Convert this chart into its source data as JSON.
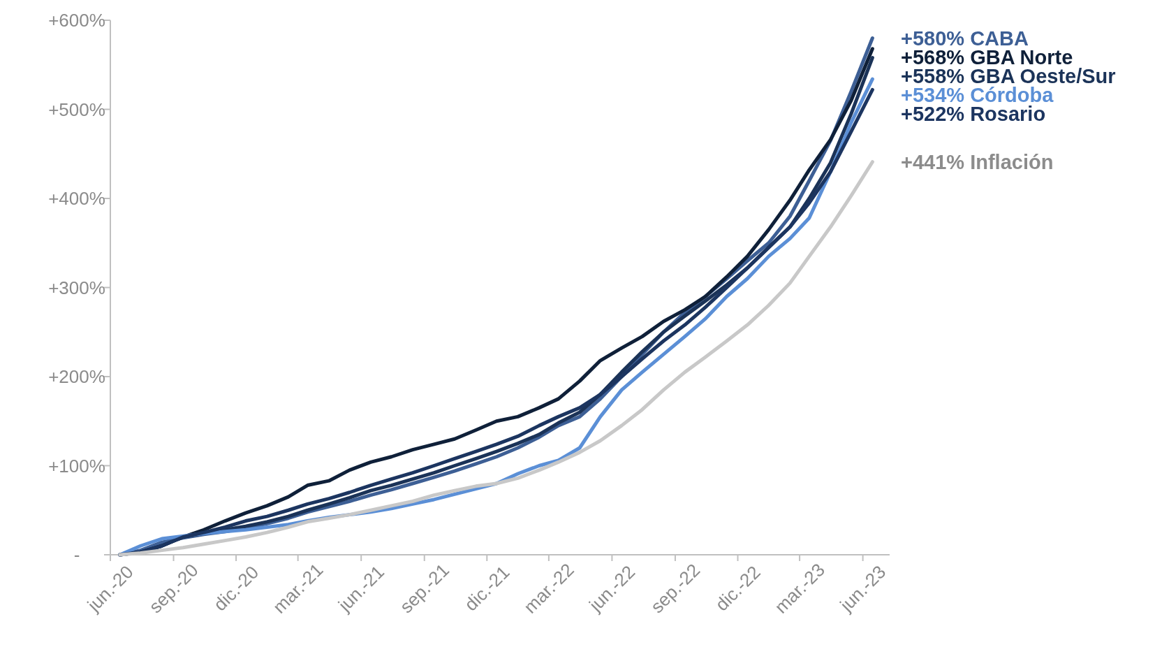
{
  "chart_data": {
    "type": "line",
    "x": [
      "2020-06-15",
      "2020-07-15",
      "2020-08-15",
      "2020-09-15",
      "2020-10-15",
      "2020-11-15",
      "2020-12-15",
      "2021-01-15",
      "2021-02-15",
      "2021-03-15",
      "2021-04-15",
      "2021-05-15",
      "2021-06-15",
      "2021-07-15",
      "2021-08-15",
      "2021-09-15",
      "2021-10-15",
      "2021-11-15",
      "2021-12-15",
      "2022-01-15",
      "2022-02-15",
      "2022-03-15",
      "2022-04-15",
      "2022-05-15",
      "2022-06-15",
      "2022-07-15",
      "2022-08-15",
      "2022-09-15",
      "2022-10-15",
      "2022-11-15",
      "2022-12-15",
      "2023-01-15",
      "2023-02-15",
      "2023-03-15",
      "2023-04-15",
      "2023-05-15",
      "2023-06-15"
    ],
    "xlim": [
      "2020-06-01",
      "2023-07-10"
    ],
    "xticks": [
      {
        "value": "2020-06-01",
        "label": "jun.-20"
      },
      {
        "value": "2020-09-01",
        "label": "sep.-20"
      },
      {
        "value": "2020-12-01",
        "label": "dic.-20"
      },
      {
        "value": "2021-03-01",
        "label": "mar.-21"
      },
      {
        "value": "2021-06-01",
        "label": "jun.-21"
      },
      {
        "value": "2021-09-01",
        "label": "sep.-21"
      },
      {
        "value": "2021-12-01",
        "label": "dic.-21"
      },
      {
        "value": "2022-03-01",
        "label": "mar.-22"
      },
      {
        "value": "2022-06-01",
        "label": "jun.-22"
      },
      {
        "value": "2022-09-01",
        "label": "sep.-22"
      },
      {
        "value": "2022-12-01",
        "label": "dic.-22"
      },
      {
        "value": "2023-03-01",
        "label": "mar.-23"
      },
      {
        "value": "2023-06-01",
        "label": "jun.-23"
      }
    ],
    "ylim": [
      0,
      600
    ],
    "yticks": [
      {
        "value": 0,
        "label": "-"
      },
      {
        "value": 100,
        "label": "+100%"
      },
      {
        "value": 200,
        "label": "+200%"
      },
      {
        "value": 300,
        "label": "+300%"
      },
      {
        "value": 400,
        "label": "+400%"
      },
      {
        "value": 500,
        "label": "+500%"
      },
      {
        "value": 600,
        "label": "+600%"
      }
    ],
    "grid": false,
    "series": [
      {
        "name": "+580% CABA",
        "color": "#3d5f95",
        "values": [
          0,
          5,
          14,
          19,
          23,
          26,
          30,
          35,
          41,
          48,
          54,
          60,
          67,
          73,
          80,
          87,
          94,
          102,
          110,
          120,
          132,
          145,
          155,
          175,
          200,
          225,
          250,
          272,
          290,
          310,
          330,
          350,
          380,
          420,
          465,
          520,
          580
        ]
      },
      {
        "name": "+568% GBA Norte",
        "color": "#0f2039",
        "values": [
          0,
          3,
          10,
          20,
          28,
          38,
          47,
          55,
          65,
          78,
          83,
          95,
          104,
          110,
          118,
          124,
          130,
          140,
          150,
          155,
          165,
          175,
          195,
          218,
          232,
          245,
          262,
          275,
          290,
          312,
          335,
          365,
          398,
          432,
          466,
          510,
          568
        ]
      },
      {
        "name": "+558% GBA Oeste/Sur",
        "color": "#1b3358",
        "values": [
          0,
          3,
          10,
          20,
          24,
          28,
          32,
          37,
          43,
          50,
          57,
          64,
          72,
          78,
          85,
          92,
          100,
          108,
          116,
          125,
          135,
          148,
          160,
          180,
          205,
          228,
          250,
          268,
          285,
          303,
          322,
          345,
          368,
          400,
          440,
          495,
          558
        ]
      },
      {
        "name": "+534% Córdoba",
        "color": "#5b8fd6",
        "values": [
          0,
          10,
          18,
          21,
          24,
          26,
          28,
          31,
          34,
          38,
          42,
          45,
          48,
          52,
          57,
          62,
          68,
          74,
          80,
          91,
          100,
          106,
          120,
          155,
          185,
          205,
          225,
          245,
          265,
          290,
          310,
          335,
          355,
          378,
          430,
          485,
          534
        ]
      },
      {
        "name": "+522% Rosario",
        "color": "#1c3560",
        "values": [
          0,
          3,
          10,
          20,
          25,
          31,
          38,
          43,
          50,
          57,
          63,
          70,
          78,
          85,
          92,
          100,
          108,
          116,
          124,
          133,
          145,
          155,
          165,
          180,
          200,
          220,
          240,
          258,
          278,
          300,
          322,
          345,
          368,
          395,
          430,
          475,
          522
        ]
      },
      {
        "name": "+441% Inflación",
        "color": "#c8c8c8",
        "values": [
          0,
          2,
          5,
          8,
          12,
          16,
          20,
          25,
          31,
          37,
          41,
          45,
          50,
          55,
          60,
          67,
          72,
          77,
          80,
          86,
          95,
          104,
          115,
          128,
          145,
          163,
          185,
          205,
          222,
          240,
          258,
          280,
          305,
          335,
          368,
          403,
          441
        ]
      }
    ]
  }
}
